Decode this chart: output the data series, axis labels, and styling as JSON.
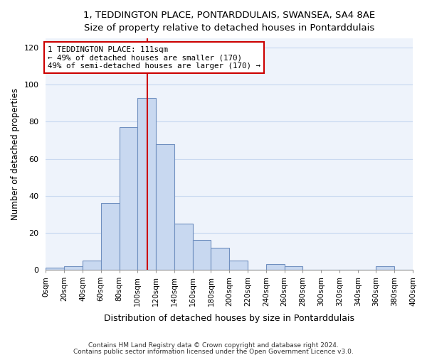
{
  "title": "1, TEDDINGTON PLACE, PONTARDDULAIS, SWANSEA, SA4 8AE",
  "subtitle": "Size of property relative to detached houses in Pontarddulais",
  "xlabel": "Distribution of detached houses by size in Pontarddulais",
  "ylabel": "Number of detached properties",
  "bar_color": "#c8d8f0",
  "bar_edge_color": "#7090c0",
  "bin_edges": [
    0,
    20,
    40,
    60,
    80,
    100,
    120,
    140,
    160,
    180,
    200,
    220,
    240,
    260,
    280,
    300,
    320,
    340,
    360,
    380,
    400
  ],
  "bar_heights": [
    1,
    2,
    5,
    36,
    77,
    93,
    68,
    25,
    16,
    12,
    5,
    0,
    3,
    2,
    0,
    0,
    0,
    0,
    2,
    0
  ],
  "vline_x": 111,
  "vline_color": "#cc0000",
  "annotation_text": "1 TEDDINGTON PLACE: 111sqm\n← 49% of detached houses are smaller (170)\n49% of semi-detached houses are larger (170) →",
  "annotation_box_color": "#ffffff",
  "annotation_box_edge": "#cc0000",
  "ylim": [
    0,
    125
  ],
  "xlim": [
    0,
    400
  ],
  "xtick_labels": [
    "0sqm",
    "20sqm",
    "40sqm",
    "60sqm",
    "80sqm",
    "100sqm",
    "120sqm",
    "140sqm",
    "160sqm",
    "180sqm",
    "200sqm",
    "220sqm",
    "240sqm",
    "260sqm",
    "280sqm",
    "300sqm",
    "320sqm",
    "340sqm",
    "360sqm",
    "380sqm",
    "400sqm"
  ],
  "footer1": "Contains HM Land Registry data © Crown copyright and database right 2024.",
  "footer2": "Contains public sector information licensed under the Open Government Licence v3.0.",
  "plot_bg_color": "#eef3fb",
  "fig_bg_color": "#ffffff",
  "grid_color": "#c8d8f0",
  "title_fontsize": 10,
  "subtitle_fontsize": 9
}
